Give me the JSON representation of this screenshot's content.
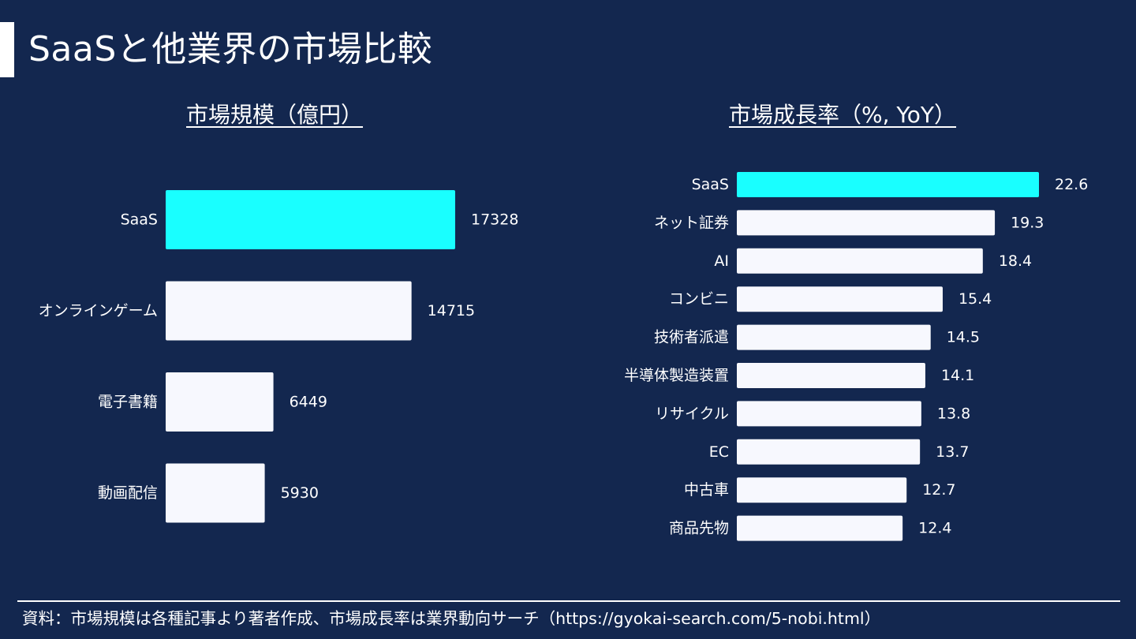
{
  "page": {
    "title": "SaaSと他業界の市場比較",
    "footnote": "資料：市場規模は各種記事より著者作成、市場成長率は業界動向サーチ（https://gyokai-search.com/5-nobi.html）"
  },
  "colors": {
    "background": "#13274f",
    "highlight_bar": "#19ffff",
    "bar": "#f7f8fe",
    "text": "#ffffff"
  },
  "chart_data": [
    {
      "type": "bar",
      "orientation": "horizontal",
      "title": "市場規模（億円）",
      "categories": [
        "SaaS",
        "オンラインゲーム",
        "電子書籍",
        "動画配信"
      ],
      "values": [
        17328,
        14715,
        6449,
        5930
      ],
      "highlight": "SaaS",
      "data_labels": true,
      "xlim": [
        0,
        17328
      ],
      "grid": false,
      "axes_visible": false
    },
    {
      "type": "bar",
      "orientation": "horizontal",
      "title": "市場成長率（%, YoY）",
      "categories": [
        "SaaS",
        "ネット証券",
        "AI",
        "コンビニ",
        "技術者派遣",
        "半導体製造装置",
        "リサイクル",
        "EC",
        "中古車",
        "商品先物"
      ],
      "values": [
        22.6,
        19.3,
        18.4,
        15.4,
        14.5,
        14.1,
        13.8,
        13.7,
        12.7,
        12.4
      ],
      "highlight": "SaaS",
      "data_labels": true,
      "xlim": [
        0,
        22.6
      ],
      "grid": false,
      "axes_visible": false
    }
  ]
}
